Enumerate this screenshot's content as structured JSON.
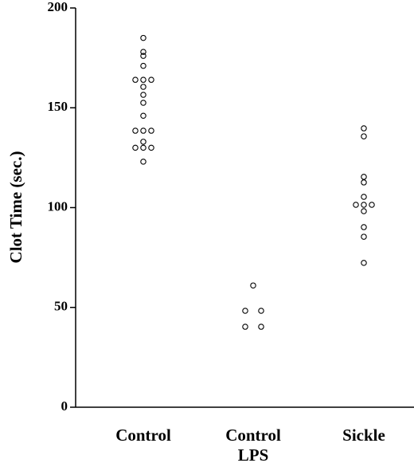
{
  "chart_data": {
    "type": "strip",
    "y_label": "Clot Time  (sec.)",
    "categories": [
      "Control",
      "Control LPS",
      "Sickle"
    ],
    "values": [
      [
        185,
        178,
        176,
        171,
        164,
        164,
        164,
        160.5,
        156.5,
        152.5,
        146,
        138.5,
        138.5,
        138.5,
        133,
        130,
        130,
        130,
        123
      ],
      [
        61,
        48.3,
        48.3,
        40.3,
        40.3
      ],
      [
        139.7,
        135.7,
        115.4,
        112.6,
        105.4,
        101.4,
        101.4,
        101.4,
        98.2,
        90.2,
        85.4,
        72.3
      ]
    ],
    "color": "#000000",
    "ylim": [
      0,
      200
    ],
    "yticks": [
      0,
      50,
      100,
      150,
      200
    ],
    "grid": false
  }
}
